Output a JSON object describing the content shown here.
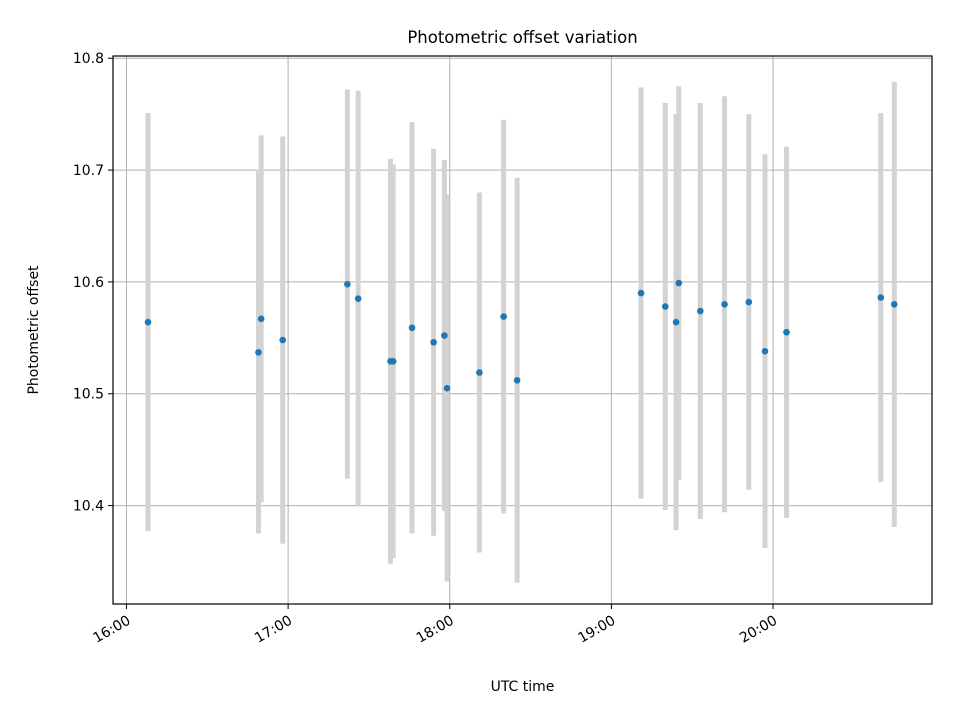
{
  "chart_data": {
    "type": "scatter",
    "title": "Photometric offset variation",
    "xlabel": "UTC time",
    "ylabel": "Photometric offset",
    "x_axis_kind": "time",
    "xlim": [
      "15:55",
      "20:59"
    ],
    "ylim": [
      10.312,
      10.802
    ],
    "x_ticks": [
      "16:00",
      "17:00",
      "18:00",
      "19:00",
      "20:00"
    ],
    "y_ticks": [
      10.4,
      10.5,
      10.6,
      10.7,
      10.8
    ],
    "y_tick_labels": [
      "10.4",
      "10.5",
      "10.6",
      "10.7",
      "10.8"
    ],
    "grid": true,
    "colors": {
      "point": "#1f77b4",
      "errorbar": "#d3d3d3",
      "grid": "#b0b0b0"
    },
    "points": [
      {
        "x": "16:08",
        "y": 10.564,
        "err": 0.187
      },
      {
        "x": "16:49",
        "y": 10.537,
        "err": 0.162
      },
      {
        "x": "16:50",
        "y": 10.567,
        "err": 0.164
      },
      {
        "x": "16:58",
        "y": 10.548,
        "err": 0.182
      },
      {
        "x": "17:22",
        "y": 10.598,
        "err": 0.174
      },
      {
        "x": "17:26",
        "y": 10.585,
        "err": 0.186
      },
      {
        "x": "17:38",
        "y": 10.529,
        "err": 0.181
      },
      {
        "x": "17:39",
        "y": 10.529,
        "err": 0.176
      },
      {
        "x": "17:46",
        "y": 10.559,
        "err": 0.184
      },
      {
        "x": "17:54",
        "y": 10.546,
        "err": 0.173
      },
      {
        "x": "17:58",
        "y": 10.552,
        "err": 0.157
      },
      {
        "x": "17:59",
        "y": 10.505,
        "err": 0.173
      },
      {
        "x": "18:11",
        "y": 10.519,
        "err": 0.161
      },
      {
        "x": "18:20",
        "y": 10.569,
        "err": 0.176
      },
      {
        "x": "18:25",
        "y": 10.512,
        "err": 0.181
      },
      {
        "x": "19:11",
        "y": 10.59,
        "err": 0.184
      },
      {
        "x": "19:20",
        "y": 10.578,
        "err": 0.182
      },
      {
        "x": "19:24",
        "y": 10.564,
        "err": 0.186
      },
      {
        "x": "19:25",
        "y": 10.599,
        "err": 0.176
      },
      {
        "x": "19:33",
        "y": 10.574,
        "err": 0.186
      },
      {
        "x": "19:42",
        "y": 10.58,
        "err": 0.186
      },
      {
        "x": "19:51",
        "y": 10.582,
        "err": 0.168
      },
      {
        "x": "19:57",
        "y": 10.538,
        "err": 0.176
      },
      {
        "x": "20:05",
        "y": 10.555,
        "err": 0.166
      },
      {
        "x": "20:40",
        "y": 10.586,
        "err": 0.165
      },
      {
        "x": "20:45",
        "y": 10.58,
        "err": 0.199
      }
    ]
  }
}
